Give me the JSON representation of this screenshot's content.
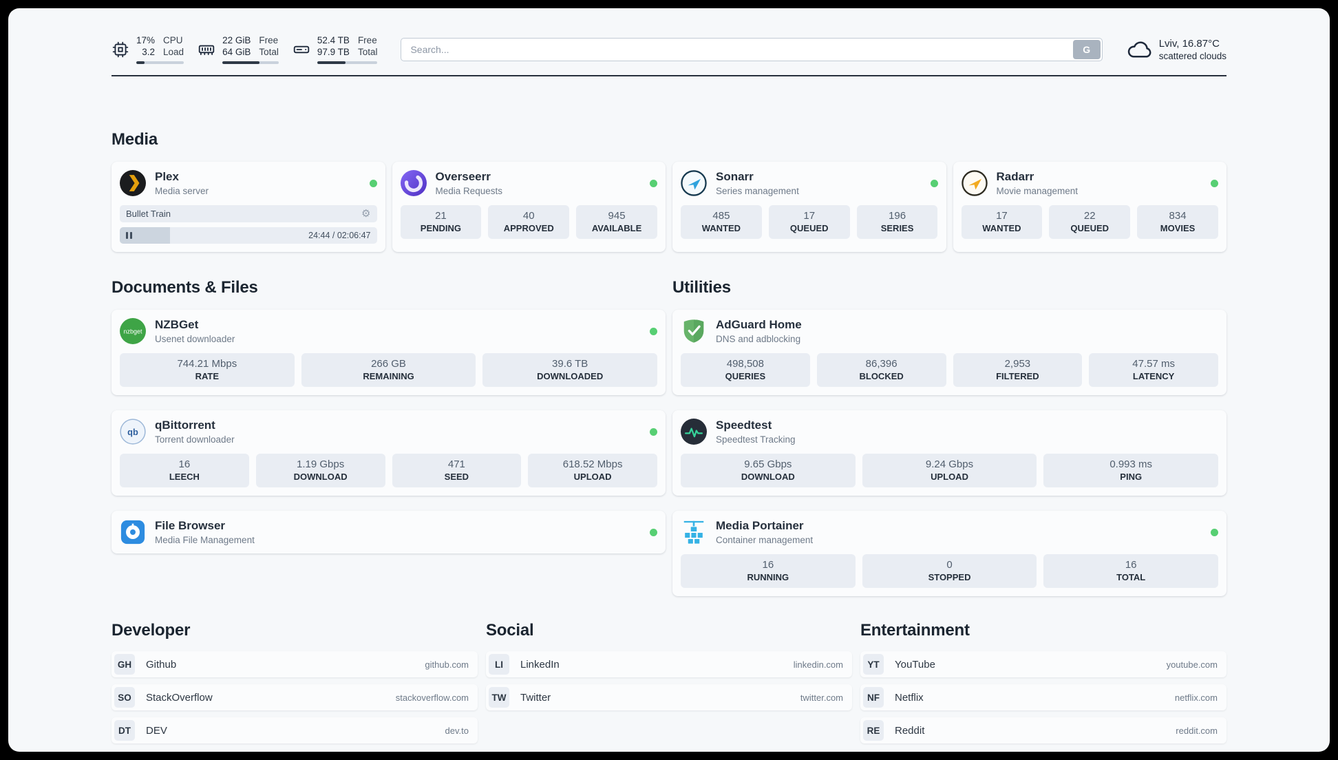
{
  "colors": {
    "status_green": "#57cf73",
    "progress_fill": "#2f3a47"
  },
  "icons": {
    "gear": "⚙"
  },
  "header": {
    "metrics": [
      {
        "name": "cpu",
        "value_top": "17%",
        "value_bottom": "3.2",
        "label_top": "CPU",
        "label_bottom": "Load",
        "progress_pct": 17
      },
      {
        "name": "ram",
        "value_top": "22 GiB",
        "value_bottom": "64 GiB",
        "label_top": "Free",
        "label_bottom": "Total",
        "progress_pct": 66
      },
      {
        "name": "disk",
        "value_top": "52.4 TB",
        "value_bottom": "97.9 TB",
        "label_top": "Free",
        "label_bottom": "Total",
        "progress_pct": 47
      }
    ],
    "search": {
      "placeholder": "Search...",
      "button_label": "G"
    },
    "weather": {
      "location": "Lviv, 16.87°C",
      "condition": "scattered clouds"
    }
  },
  "media": {
    "title": "Media",
    "plex": {
      "name": "Plex",
      "subtitle": "Media server",
      "status": "online",
      "now_playing": "Bullet Train",
      "time_display": "24:44 / 02:06:47",
      "progress_pct": 19.5
    },
    "overseerr": {
      "name": "Overseerr",
      "subtitle": "Media Requests",
      "status": "online",
      "stats": [
        {
          "value": "21",
          "label": "PENDING"
        },
        {
          "value": "40",
          "label": "APPROVED"
        },
        {
          "value": "945",
          "label": "AVAILABLE"
        }
      ]
    },
    "sonarr": {
      "name": "Sonarr",
      "subtitle": "Series management",
      "status": "online",
      "stats": [
        {
          "value": "485",
          "label": "WANTED"
        },
        {
          "value": "17",
          "label": "QUEUED"
        },
        {
          "value": "196",
          "label": "SERIES"
        }
      ]
    },
    "radarr": {
      "name": "Radarr",
      "subtitle": "Movie management",
      "status": "online",
      "stats": [
        {
          "value": "17",
          "label": "WANTED"
        },
        {
          "value": "22",
          "label": "QUEUED"
        },
        {
          "value": "834",
          "label": "MOVIES"
        }
      ]
    }
  },
  "documents": {
    "title": "Documents & Files",
    "nzbget": {
      "name": "NZBGet",
      "subtitle": "Usenet downloader",
      "status": "online",
      "icon_text": "nzbget",
      "stats": [
        {
          "value": "744.21 Mbps",
          "label": "RATE"
        },
        {
          "value": "266 GB",
          "label": "REMAINING"
        },
        {
          "value": "39.6 TB",
          "label": "DOWNLOADED"
        }
      ]
    },
    "qbittorrent": {
      "name": "qBittorrent",
      "subtitle": "Torrent downloader",
      "status": "online",
      "icon_text": "qb",
      "stats": [
        {
          "value": "16",
          "label": "LEECH"
        },
        {
          "value": "1.19 Gbps",
          "label": "DOWNLOAD"
        },
        {
          "value": "471",
          "label": "SEED"
        },
        {
          "value": "618.52 Mbps",
          "label": "UPLOAD"
        }
      ]
    },
    "filebrowser": {
      "name": "File Browser",
      "subtitle": "Media File Management",
      "status": "online"
    }
  },
  "utilities": {
    "title": "Utilities",
    "adguard": {
      "name": "AdGuard Home",
      "subtitle": "DNS and adblocking",
      "stats": [
        {
          "value": "498,508",
          "label": "QUERIES"
        },
        {
          "value": "86,396",
          "label": "BLOCKED"
        },
        {
          "value": "2,953",
          "label": "FILTERED"
        },
        {
          "value": "47.57 ms",
          "label": "LATENCY"
        }
      ]
    },
    "speedtest": {
      "name": "Speedtest",
      "subtitle": "Speedtest Tracking",
      "stats": [
        {
          "value": "9.65 Gbps",
          "label": "DOWNLOAD"
        },
        {
          "value": "9.24 Gbps",
          "label": "UPLOAD"
        },
        {
          "value": "0.993 ms",
          "label": "PING"
        }
      ]
    },
    "portainer": {
      "name": "Media Portainer",
      "subtitle": "Container management",
      "status": "online",
      "stats": [
        {
          "value": "16",
          "label": "RUNNING"
        },
        {
          "value": "0",
          "label": "STOPPED"
        },
        {
          "value": "16",
          "label": "TOTAL"
        }
      ]
    }
  },
  "bookmarks": {
    "developer": {
      "title": "Developer",
      "items": [
        {
          "abbr": "GH",
          "name": "Github",
          "url": "github.com"
        },
        {
          "abbr": "SO",
          "name": "StackOverflow",
          "url": "stackoverflow.com"
        },
        {
          "abbr": "DT",
          "name": "DEV",
          "url": "dev.to"
        }
      ]
    },
    "social": {
      "title": "Social",
      "items": [
        {
          "abbr": "LI",
          "name": "LinkedIn",
          "url": "linkedin.com"
        },
        {
          "abbr": "TW",
          "name": "Twitter",
          "url": "twitter.com"
        }
      ]
    },
    "entertainment": {
      "title": "Entertainment",
      "items": [
        {
          "abbr": "YT",
          "name": "YouTube",
          "url": "youtube.com"
        },
        {
          "abbr": "NF",
          "name": "Netflix",
          "url": "netflix.com"
        },
        {
          "abbr": "RE",
          "name": "Reddit",
          "url": "reddit.com"
        }
      ]
    }
  }
}
